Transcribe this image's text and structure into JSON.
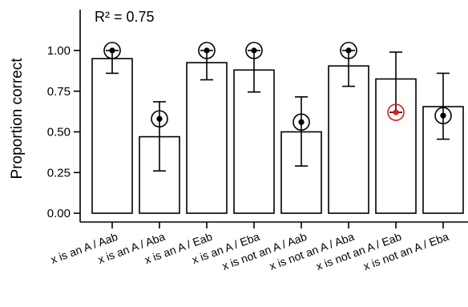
{
  "chart_data": {
    "type": "bar",
    "title": "",
    "annotation": "R² =  0.75",
    "xlabel": "",
    "ylabel": "Proportion correct",
    "ylim": [
      0,
      1.2
    ],
    "yticks": [
      "0.00",
      "0.25",
      "0.50",
      "0.75",
      "1.00"
    ],
    "categories": [
      "x is an A  /  Aab",
      "x is an A  /  Aba",
      "x is an A  /  Eab",
      "x is an A  /  Eba",
      "x is not an A  /  Aab",
      "x is not an A  /  Aba",
      "x is not an A  /  Eab",
      "x is not an A  /  Eba"
    ],
    "series": [
      {
        "values": [
          0.95,
          0.47,
          0.925,
          0.88,
          0.5,
          0.905,
          0.825,
          0.655
        ],
        "error_low": [
          0.86,
          0.26,
          0.82,
          0.745,
          0.29,
          0.78,
          0.62,
          0.455
        ],
        "error_high": [
          1.0,
          0.685,
          1.0,
          1.0,
          0.715,
          1.0,
          0.99,
          0.86
        ]
      }
    ],
    "points": [
      1.0,
      0.58,
      1.0,
      1.0,
      0.56,
      1.0,
      0.62,
      0.6
    ],
    "point_colors": [
      "#000000",
      "#000000",
      "#000000",
      "#000000",
      "#000000",
      "#000000",
      "#e8191b",
      "#000000"
    ],
    "colors": {
      "bar_fill": "#ffffff",
      "bar_stroke": "#000000",
      "highlight": "#e8191b"
    }
  }
}
